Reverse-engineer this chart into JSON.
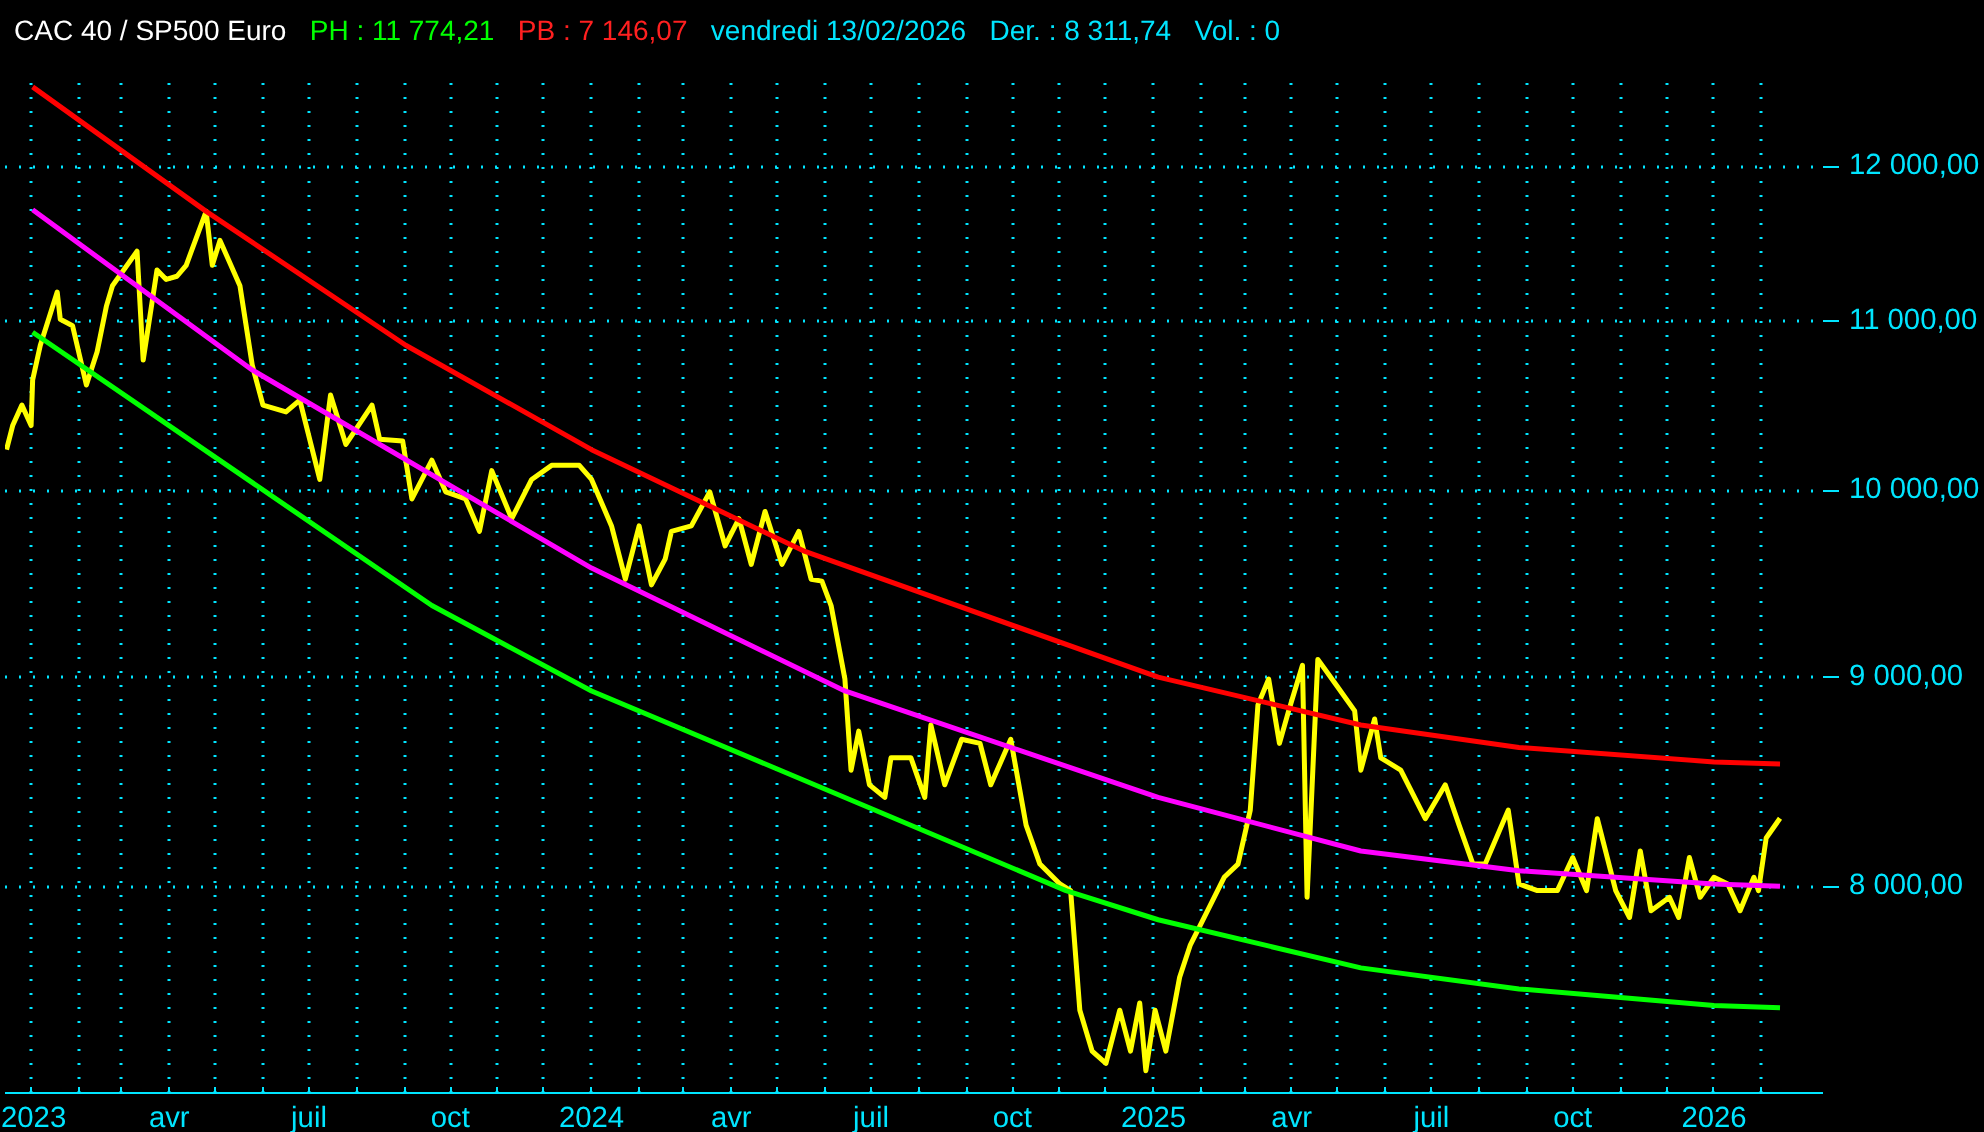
{
  "chart_data": {
    "type": "line",
    "title": "CAC 40 / SP500 Euro",
    "annotations": [
      "PH : 11 774,21",
      "PB : 7 146,07",
      "vendredi 13/02/2026",
      "Der. : 8 311,74",
      "Vol. : 0"
    ],
    "log": true,
    "grid": true,
    "line_style": "solid",
    "marker": "none",
    "xlim": [
      "2022-12-15",
      "2026-03-13"
    ],
    "ylim": [
      7120,
      12620
    ],
    "yticks": [
      {
        "value": 8000,
        "label": "8 000,00"
      },
      {
        "value": 9000,
        "label": "9 000,00"
      },
      {
        "value": 10000,
        "label": "10 000,00"
      },
      {
        "value": 11000,
        "label": "11 000,00"
      },
      {
        "value": 12000,
        "label": "12 000,00"
      }
    ],
    "xticks": [
      {
        "value": "2023-01",
        "label": "2023"
      },
      {
        "value": "2023-02",
        "label": null
      },
      {
        "value": "2023-03",
        "label": null
      },
      {
        "value": "2023-04",
        "label": "avr"
      },
      {
        "value": "2023-05",
        "label": null
      },
      {
        "value": "2023-06",
        "label": null
      },
      {
        "value": "2023-07",
        "label": "juil"
      },
      {
        "value": "2023-08",
        "label": null
      },
      {
        "value": "2023-09",
        "label": null
      },
      {
        "value": "2023-10",
        "label": "oct"
      },
      {
        "value": "2023-11",
        "label": null
      },
      {
        "value": "2023-12",
        "label": null
      },
      {
        "value": "2024-01",
        "label": "2024"
      },
      {
        "value": "2024-02",
        "label": null
      },
      {
        "value": "2024-03",
        "label": null
      },
      {
        "value": "2024-04",
        "label": "avr"
      },
      {
        "value": "2024-05",
        "label": null
      },
      {
        "value": "2024-06",
        "label": null
      },
      {
        "value": "2024-07",
        "label": "juil"
      },
      {
        "value": "2024-08",
        "label": null
      },
      {
        "value": "2024-09",
        "label": null
      },
      {
        "value": "2024-10",
        "label": "oct"
      },
      {
        "value": "2024-11",
        "label": null
      },
      {
        "value": "2024-12",
        "label": null
      },
      {
        "value": "2025-01",
        "label": "2025"
      },
      {
        "value": "2025-02",
        "label": null
      },
      {
        "value": "2025-03",
        "label": null
      },
      {
        "value": "2025-04",
        "label": "avr"
      },
      {
        "value": "2025-05",
        "label": null
      },
      {
        "value": "2025-06",
        "label": null
      },
      {
        "value": "2025-07",
        "label": "juil"
      },
      {
        "value": "2025-08",
        "label": null
      },
      {
        "value": "2025-09",
        "label": null
      },
      {
        "value": "2025-10",
        "label": "oct"
      },
      {
        "value": "2025-11",
        "label": null
      },
      {
        "value": "2025-12",
        "label": null
      },
      {
        "value": "2026-01",
        "label": "2026"
      },
      {
        "value": "2026-02",
        "label": null
      }
    ],
    "series": [
      {
        "color": "#ffff00",
        "x": [
          "2022-12-16",
          "2022-12-20",
          "2022-12-26",
          "2023-01-01",
          "2023-01-02",
          "2023-01-07",
          "2023-01-18",
          "2023-01-20",
          "2023-01-28",
          "2023-02-06",
          "2023-02-13",
          "2023-02-19",
          "2023-02-23",
          "2023-03-11",
          "2023-03-15",
          "2023-03-24",
          "2023-03-30",
          "2023-04-06",
          "2023-04-12",
          "2023-04-25",
          "2023-04-29",
          "2023-05-04",
          "2023-05-17",
          "2023-05-25",
          "2023-06-01",
          "2023-06-16",
          "2023-06-25",
          "2023-07-08",
          "2023-07-15",
          "2023-07-25",
          "2023-08-11",
          "2023-08-16",
          "2023-08-31",
          "2023-09-06",
          "2023-09-19",
          "2023-09-28",
          "2023-10-11",
          "2023-10-20",
          "2023-10-28",
          "2023-11-10",
          "2023-11-23",
          "2023-12-06",
          "2023-12-24",
          "2024-01-01",
          "2024-01-14",
          "2024-01-23",
          "2024-02-01",
          "2024-02-09",
          "2024-02-18",
          "2024-02-22",
          "2024-03-06",
          "2024-03-18",
          "2024-03-28",
          "2024-04-06",
          "2024-04-14",
          "2024-04-23",
          "2024-05-04",
          "2024-05-15",
          "2024-05-23",
          "2024-05-30",
          "2024-06-05",
          "2024-06-14",
          "2024-06-18",
          "2024-06-23",
          "2024-06-30",
          "2024-07-10",
          "2024-07-14",
          "2024-07-27",
          "2024-08-05",
          "2024-08-09",
          "2024-08-18",
          "2024-08-29",
          "2024-09-10",
          "2024-09-17",
          "2024-09-30",
          "2024-10-10",
          "2024-10-19",
          "2024-11-01",
          "2024-11-08",
          "2024-11-14",
          "2024-11-22",
          "2024-12-01",
          "2024-12-10",
          "2024-12-17",
          "2024-12-23",
          "2024-12-27",
          "2025-01-02",
          "2025-01-09",
          "2025-01-18",
          "2025-01-25",
          "2025-02-03",
          "2025-02-16",
          "2025-02-25",
          "2025-03-05",
          "2025-03-10",
          "2025-03-17",
          "2025-03-24",
          "2025-03-30",
          "2025-04-08",
          "2025-04-11",
          "2025-04-18",
          "2025-04-30",
          "2025-05-12",
          "2025-05-16",
          "2025-05-25",
          "2025-05-29",
          "2025-06-11",
          "2025-06-27",
          "2025-07-10",
          "2025-07-19",
          "2025-07-28",
          "2025-08-05",
          "2025-08-20",
          "2025-08-27",
          "2025-09-08",
          "2025-09-21",
          "2025-10-01",
          "2025-10-10",
          "2025-10-17",
          "2025-10-29",
          "2025-11-07",
          "2025-11-14",
          "2025-11-21",
          "2025-12-03",
          "2025-12-09",
          "2025-12-16",
          "2025-12-23",
          "2026-01-01",
          "2026-01-10",
          "2026-01-18",
          "2026-01-27",
          "2026-01-30",
          "2026-02-04",
          "2026-02-13"
        ],
        "values": [
          10230,
          10370,
          10490,
          10370,
          10640,
          10850,
          11180,
          11010,
          10970,
          10610,
          10810,
          11090,
          11220,
          11440,
          10760,
          11320,
          11260,
          11280,
          11350,
          11700,
          11350,
          11510,
          11220,
          10730,
          10490,
          10450,
          10520,
          10060,
          10550,
          10260,
          10490,
          10290,
          10280,
          9950,
          10170,
          9990,
          9950,
          9770,
          10110,
          9840,
          10060,
          10140,
          10140,
          10060,
          9800,
          9510,
          9800,
          9480,
          9620,
          9770,
          9800,
          9990,
          9690,
          9840,
          9590,
          9880,
          9590,
          9770,
          9510,
          9500,
          9370,
          8990,
          8540,
          8730,
          8470,
          8410,
          8600,
          8600,
          8410,
          8760,
          8470,
          8690,
          8670,
          8470,
          8690,
          8280,
          8100,
          8010,
          7980,
          7460,
          7290,
          7240,
          7460,
          7290,
          7490,
          7210,
          7460,
          7290,
          7600,
          7740,
          7860,
          8040,
          8100,
          8350,
          8860,
          8990,
          8670,
          8830,
          9060,
          7950,
          9090,
          8960,
          8830,
          8540,
          8790,
          8600,
          8540,
          8310,
          8470,
          8280,
          8100,
          8100,
          8350,
          8010,
          7980,
          7980,
          8130,
          7980,
          8310,
          7980,
          7860,
          8160,
          7890,
          7950,
          7860,
          8130,
          7950,
          8040,
          8010,
          7890,
          8040,
          7980,
          8220,
          8311.74
        ]
      },
      {
        "color": "#ff0000",
        "x": [
          "2023-01-02",
          "2023-04-25",
          "2023-09-02",
          "2024-01-01",
          "2024-05-19",
          "2025-01-04",
          "2025-05-16",
          "2025-08-27",
          "2026-01-01",
          "2026-02-13"
        ],
        "values": [
          12550,
          11700,
          10850,
          10230,
          9660,
          9000,
          8760,
          8650,
          8580,
          8570
        ]
      },
      {
        "color": "#ff00ff",
        "x": [
          "2023-01-02",
          "2023-05-25",
          "2024-01-01",
          "2024-06-14",
          "2025-01-04",
          "2025-05-16",
          "2025-08-27",
          "2026-01-01",
          "2026-02-13"
        ],
        "values": [
          11710,
          10700,
          9570,
          8930,
          8410,
          8160,
          8070,
          8010,
          8000
        ]
      },
      {
        "color": "#00ff00",
        "x": [
          "2023-01-02",
          "2023-09-19",
          "2024-01-01",
          "2024-11-05",
          "2025-01-04",
          "2025-05-16",
          "2025-08-27",
          "2026-01-01",
          "2026-02-13"
        ],
        "values": [
          10930,
          9370,
          8930,
          7980,
          7850,
          7640,
          7550,
          7480,
          7470
        ]
      }
    ]
  }
}
